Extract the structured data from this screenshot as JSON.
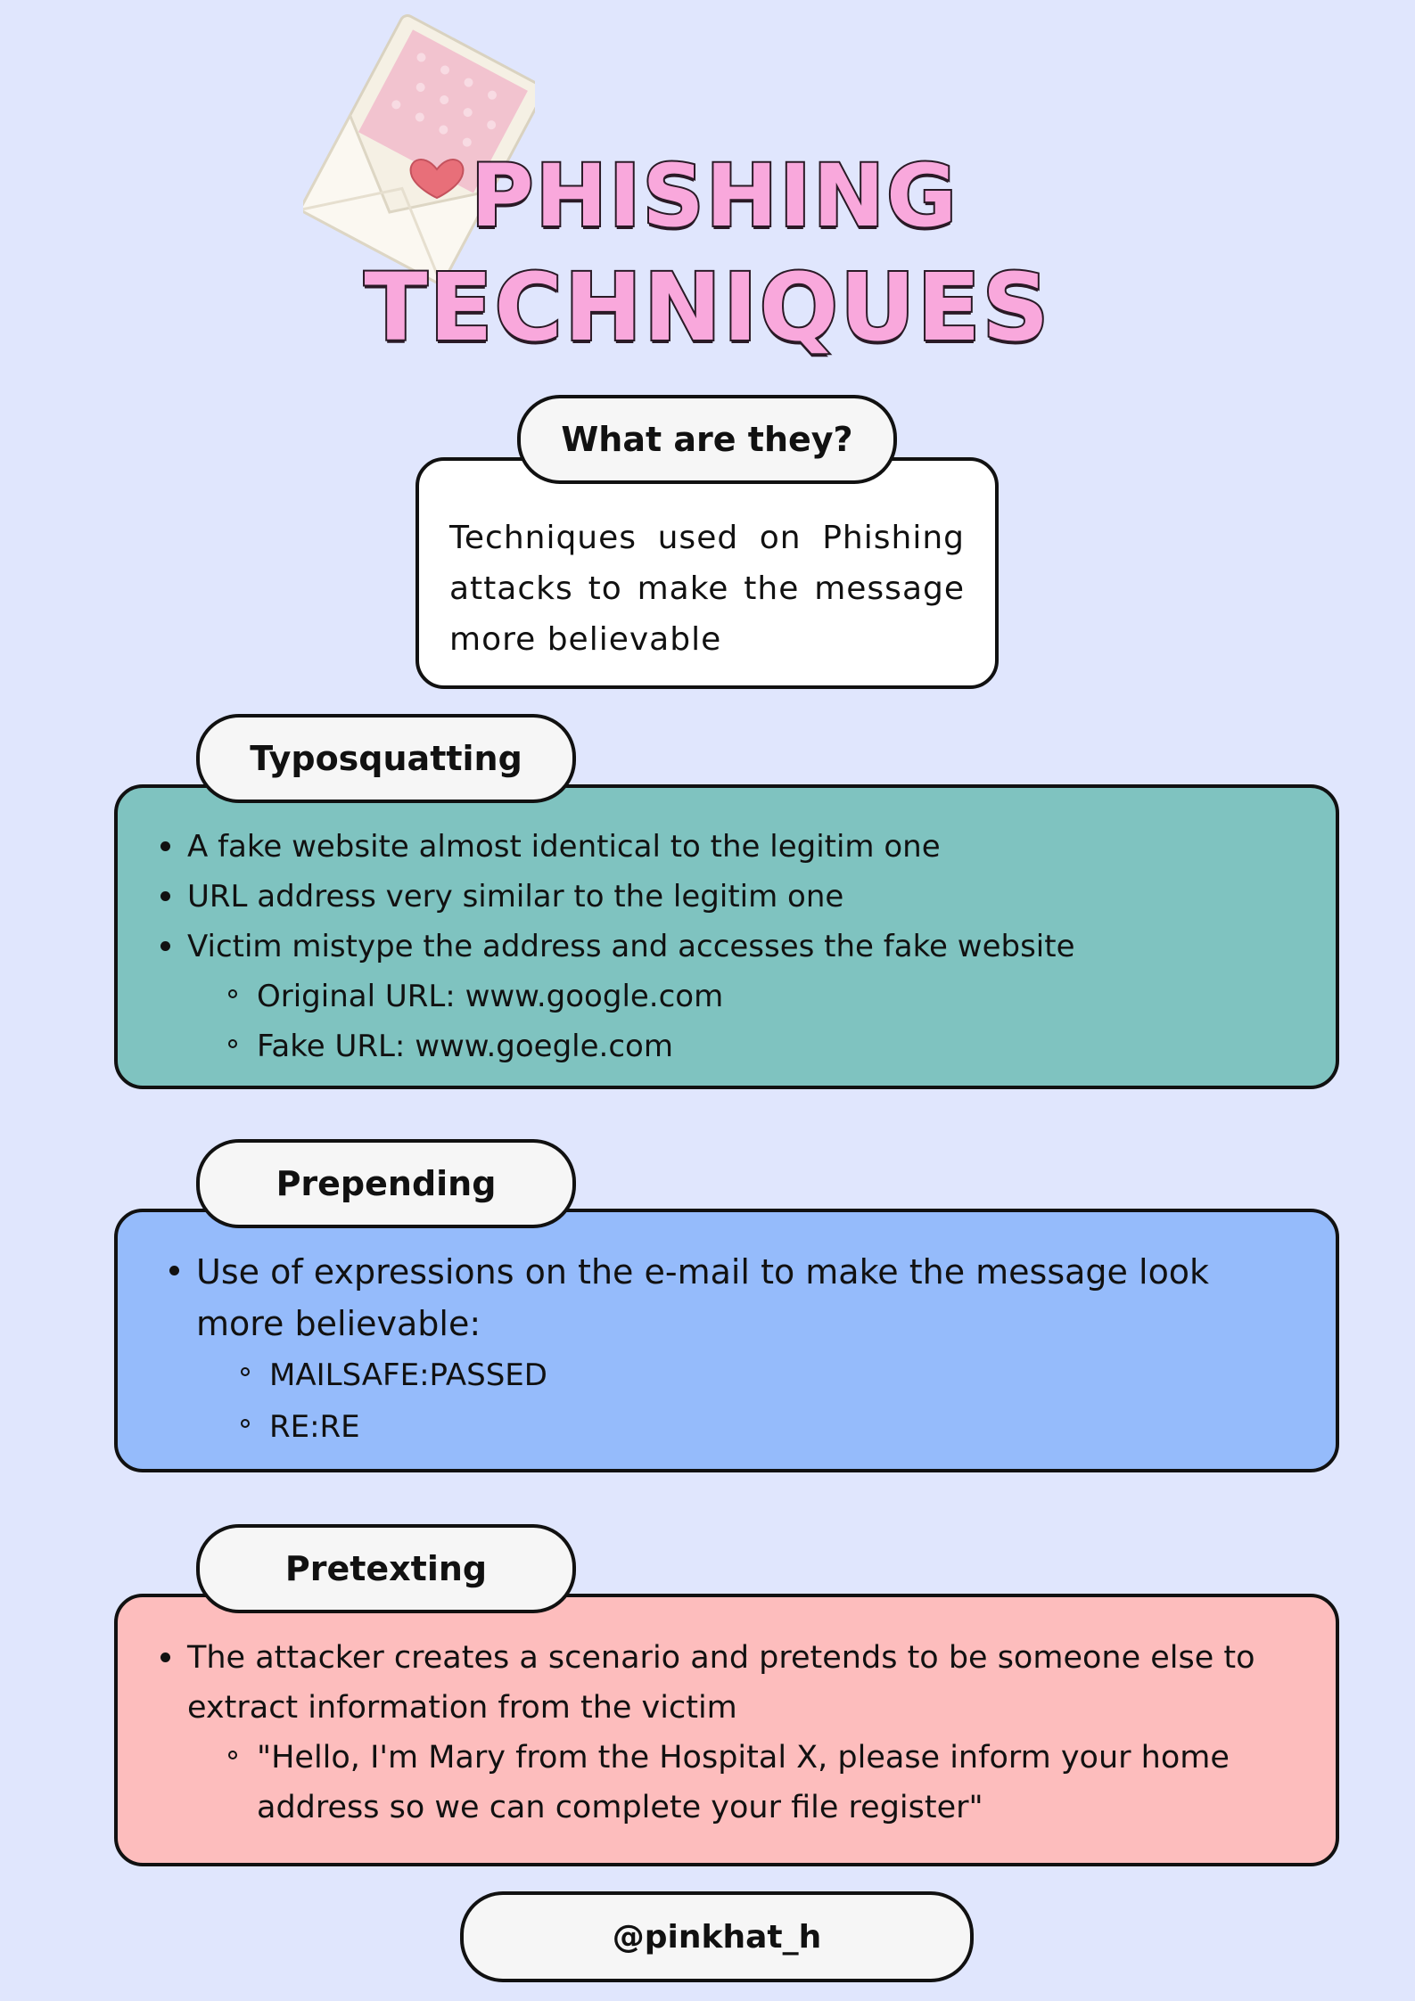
{
  "title": {
    "line1": "PHISHING",
    "line2": "TECHNIQUES"
  },
  "icons": {
    "envelope": "envelope-heart-icon"
  },
  "colors": {
    "background": "#e0e6fd",
    "title_fill": "#f9a8dc",
    "what_card": "#ffffff",
    "typosquatting_card": "#7fc3c0",
    "prepending_card": "#95bbfb",
    "pretexting_card": "#fdbdbd"
  },
  "what": {
    "heading": "What are they?",
    "text": "Techniques used on Phishing attacks to make the message more believable"
  },
  "typosquatting": {
    "heading": "Typosquatting",
    "bullets": [
      "A fake website almost identical to the legitim one",
      "URL address very similar to the legitim one",
      "Victim mistype the address and accesses the fake website"
    ],
    "sub_bullets": [
      "Original URL: www.google.com",
      "Fake URL: www.goegle.com"
    ]
  },
  "prepending": {
    "heading": "Prepending",
    "bullets": [
      "Use of expressions on the e-mail to make the message look more believable:"
    ],
    "sub_bullets": [
      "MAILSAFE:PASSED",
      "RE:RE"
    ]
  },
  "pretexting": {
    "heading": "Pretexting",
    "bullets": [
      "The attacker creates a scenario and pretends to be someone else to extract information from the victim"
    ],
    "sub_bullets": [
      "\"Hello, I'm Mary from the Hospital X, please inform your home address so we can complete your file register\""
    ]
  },
  "footer": {
    "handle": "@pinkhat_h"
  }
}
